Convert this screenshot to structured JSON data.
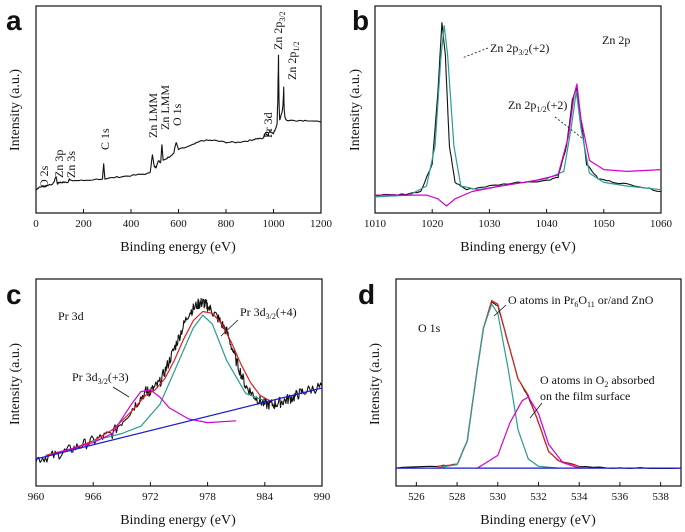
{
  "chart_data": [
    {
      "panel": "a",
      "type": "line",
      "title": "",
      "xlabel": "Binding energy (eV)",
      "ylabel": "Intensity (a.u.)",
      "xlim": [
        0,
        1200
      ],
      "ylim": [
        0,
        100
      ],
      "xticks": [
        0,
        200,
        400,
        600,
        800,
        1000,
        1200
      ],
      "series": [
        {
          "name": "survey",
          "color": "#111111",
          "x": [
            0,
            10,
            30,
            70,
            85,
            90,
            95,
            110,
            135,
            140,
            145,
            200,
            280,
            285,
            290,
            350,
            420,
            480,
            490,
            498,
            505,
            515,
            525,
            530,
            535,
            560,
            580,
            590,
            600,
            650,
            700,
            750,
            800,
            850,
            900,
            930,
            955,
            965,
            975,
            985,
            1000,
            1010,
            1015,
            1018,
            1021,
            1023,
            1026,
            1030,
            1035,
            1040,
            1043,
            1045,
            1048,
            1055,
            1100,
            1150,
            1200
          ],
          "y": [
            6,
            7,
            8,
            9,
            13,
            9,
            10,
            10,
            10,
            12,
            11,
            11,
            12,
            20,
            12,
            13,
            14,
            15,
            25,
            19,
            18,
            22,
            21,
            31,
            22,
            24,
            26,
            32,
            28,
            30,
            33,
            33,
            32,
            32,
            33,
            34,
            34,
            37,
            36,
            38,
            37,
            40,
            42,
            55,
            80,
            55,
            44,
            46,
            48,
            52,
            62,
            50,
            46,
            44,
            44,
            44,
            43
          ]
        }
      ],
      "annotations": [
        "O 2s",
        "Zn 3p",
        "Zn 3s",
        "C 1s",
        "Zn LMM",
        "Zn LMM",
        "O 1s",
        "Pr 3d",
        "Zn 2p3/2",
        "Zn 2p1/2"
      ]
    },
    {
      "panel": "b",
      "type": "line",
      "title": "Zn 2p",
      "xlabel": "Binding energy (eV)",
      "ylabel": "Intensity (a.u.)",
      "xlim": [
        1010,
        1060
      ],
      "ylim": [
        0,
        100
      ],
      "xticks": [
        1010,
        1020,
        1030,
        1040,
        1050,
        1060
      ],
      "series": [
        {
          "name": "measured",
          "color": "#111111",
          "x": [
            1010,
            1014,
            1018,
            1020,
            1021,
            1021.7,
            1022.3,
            1023,
            1024,
            1026,
            1030,
            1035,
            1040,
            1042,
            1043.5,
            1044.5,
            1045.2,
            1046,
            1047,
            1049,
            1052,
            1056,
            1060
          ],
          "y": [
            3,
            3,
            5,
            20,
            60,
            98,
            80,
            30,
            10,
            6,
            8,
            10,
            11,
            13,
            30,
            55,
            62,
            45,
            20,
            12,
            10,
            8,
            5
          ]
        },
        {
          "name": "Zn 2p3/2 fit",
          "color": "#2a9d8f",
          "x": [
            1010,
            1016,
            1019,
            1020.5,
            1021.5,
            1022.1,
            1022.7,
            1023.8,
            1025,
            1028,
            1034,
            1040,
            1043,
            1044.3,
            1045.2,
            1046,
            1047.5,
            1050,
            1054,
            1060
          ],
          "y": [
            2,
            3,
            8,
            30,
            78,
            96,
            80,
            30,
            8,
            6,
            9,
            12,
            16,
            40,
            60,
            40,
            15,
            10,
            8,
            6
          ]
        },
        {
          "name": "envelope",
          "color": "#d400d4",
          "x": [
            1010,
            1016,
            1019,
            1021,
            1022.5,
            1024,
            1027,
            1032,
            1038,
            1042,
            1043.8,
            1044.8,
            1045.3,
            1046,
            1047.5,
            1050,
            1054,
            1060
          ],
          "y": [
            3,
            3,
            3,
            1,
            -3,
            1,
            5,
            8,
            11,
            14,
            35,
            58,
            64,
            45,
            22,
            17,
            16,
            17
          ]
        }
      ],
      "annotations": [
        "Zn 2p3/2 (+2)",
        "Zn 2p1/2 (+2)"
      ]
    },
    {
      "panel": "c",
      "type": "line",
      "title": "Pr 3d",
      "xlabel": "Binding energy (eV)",
      "ylabel": "Intensity (a.u.)",
      "xlim": [
        960,
        990
      ],
      "ylim": [
        0,
        100
      ],
      "xticks": [
        960,
        966,
        972,
        978,
        984,
        990
      ],
      "series": [
        {
          "name": "measured",
          "color": "#111111",
          "x": [
            960,
            962,
            964,
            966,
            968,
            970,
            971.5,
            972,
            973,
            974,
            975,
            976,
            977,
            977.5,
            978,
            979,
            980,
            981,
            982,
            983,
            984,
            985,
            986,
            987,
            988,
            990
          ],
          "y": [
            8,
            10,
            14,
            18,
            22,
            35,
            45,
            45,
            50,
            62,
            75,
            88,
            93,
            94,
            92,
            86,
            78,
            62,
            48,
            42,
            38,
            38,
            40,
            42,
            45,
            48
          ]
        },
        {
          "name": "fit envelope",
          "color": "#e02020",
          "x": [
            961,
            964,
            966,
            968,
            970,
            971.5,
            972.5,
            973.5,
            974.5,
            975.5,
            976.5,
            977.5,
            978.5,
            979.5,
            980.5,
            981.5,
            982.5,
            983.5,
            984.5
          ],
          "y": [
            10,
            14,
            18,
            24,
            34,
            43,
            46,
            52,
            62,
            74,
            84,
            89,
            88,
            82,
            72,
            60,
            50,
            43,
            40
          ]
        },
        {
          "name": "Pr 3d3/2 (+4) component",
          "color": "#2a9d8f",
          "x": [
            966,
            969,
            971,
            973,
            975,
            976.5,
            977.5,
            978.5,
            980,
            982,
            984
          ],
          "y": [
            18,
            22,
            26,
            38,
            62,
            80,
            87,
            82,
            62,
            44,
            40
          ]
        },
        {
          "name": "Pr 3d3/2 (+3) component",
          "color": "#d400d4",
          "x": [
            962,
            966,
            968,
            970,
            971,
            972,
            973,
            974,
            976,
            978,
            981
          ],
          "y": [
            11,
            17,
            22,
            38,
            45,
            46,
            42,
            36,
            30,
            28,
            29
          ]
        },
        {
          "name": "background",
          "color": "#1a1ad4",
          "x": [
            960,
            990
          ],
          "y": [
            8,
            47
          ]
        }
      ],
      "annotations": [
        "Pr 3d3/2 (+3)",
        "Pr 3d3/2 (+4)"
      ]
    },
    {
      "panel": "d",
      "type": "line",
      "title": "O 1s",
      "xlabel": "Binding energy (eV)",
      "ylabel": "Intensity (a.u.)",
      "xlim": [
        525,
        539
      ],
      "ylim": [
        0,
        100
      ],
      "xticks": [
        526,
        528,
        530,
        532,
        534,
        536,
        538
      ],
      "series": [
        {
          "name": "measured",
          "color": "#111111",
          "x": [
            525,
            527,
            528,
            528.5,
            529,
            529.3,
            529.7,
            530,
            530.5,
            531,
            531.5,
            532,
            532.5,
            533,
            534,
            536,
            539
          ],
          "y": [
            3,
            4,
            5,
            18,
            58,
            80,
            94,
            92,
            72,
            52,
            42,
            28,
            12,
            7,
            4,
            3,
            3
          ]
        },
        {
          "name": "fit envelope",
          "color": "#e02020",
          "x": [
            527,
            528,
            528.5,
            529,
            529.3,
            529.7,
            530,
            530.5,
            531,
            531.5,
            532,
            532.5,
            533,
            534
          ],
          "y": [
            4,
            5,
            18,
            58,
            80,
            95,
            93,
            72,
            52,
            43,
            28,
            12,
            7,
            4
          ]
        },
        {
          "name": "O in Pr6O11/ZnO component",
          "color": "#2a9d8f",
          "x": [
            527,
            528,
            528.5,
            529,
            529.3,
            529.7,
            530,
            530.5,
            531,
            531.5,
            532,
            533
          ],
          "y": [
            3,
            5,
            18,
            58,
            80,
            93,
            88,
            58,
            24,
            8,
            4,
            3
          ]
        },
        {
          "name": "O in adsorbed O2 component",
          "color": "#d400d4",
          "x": [
            529,
            530,
            530.6,
            531.2,
            531.5,
            532,
            532.5,
            533.2,
            534
          ],
          "y": [
            3,
            10,
            28,
            40,
            42,
            33,
            16,
            6,
            3
          ]
        },
        {
          "name": "background",
          "color": "#1a1ad4",
          "x": [
            525,
            539
          ],
          "y": [
            3,
            3
          ]
        }
      ],
      "annotations": [
        "O atoms in Pr6O11 or/and ZnO",
        "O atoms in O2 absorbed",
        "on the film surface"
      ]
    }
  ],
  "text": {
    "a": {
      "label": "a",
      "ylabel": "Intensity (a.u.)",
      "xlabel": "Binding energy (eV)",
      "o2s": "O 2s",
      "zn3p": "Zn 3p",
      "zn3s": "Zn 3s",
      "c1s": "C 1s",
      "znlmm1": "Zn LMM",
      "znlmm2": "Zn LMM",
      "o1s": "O 1s",
      "pr3d": "Pr 3d",
      "zn2p32_main": "Zn 2p",
      "zn2p32_sub": "3/2",
      "zn2p12_main": "Zn 2p",
      "zn2p12_sub": "1/2"
    },
    "b": {
      "label": "b",
      "ylabel": "Intensity (a.u.)",
      "xlabel": "Binding energy (eV)",
      "title": "Zn 2p",
      "ann1_main": "Zn 2p",
      "ann1_sub": "3/2",
      "ann1_tail": "(+2)",
      "ann2_main": "Zn 2p",
      "ann2_sub": "1/2",
      "ann2_tail": "(+2)"
    },
    "c": {
      "label": "c",
      "ylabel": "Intensity (a.u.)",
      "xlabel": "Binding energy (eV)",
      "title": "Pr 3d",
      "ann1_main": "Pr 3d",
      "ann1_sub": "3/2",
      "ann1_tail": "(+3)",
      "ann2_main": "Pr 3d",
      "ann2_sub": "3/2",
      "ann2_tail": "(+4)"
    },
    "d": {
      "label": "d",
      "ylabel": "Intensity (a.u.)",
      "xlabel": "Binding energy (eV)",
      "title": "O 1s",
      "ann1_a": "O atoms in Pr",
      "ann1_s1": "6",
      "ann1_b": "O",
      "ann1_s2": "11",
      "ann1_c": " or/and ZnO",
      "ann2_a": "O atoms in O",
      "ann2_s": "2",
      "ann2_b": " absorbed",
      "ann3": "on the film surface"
    }
  }
}
